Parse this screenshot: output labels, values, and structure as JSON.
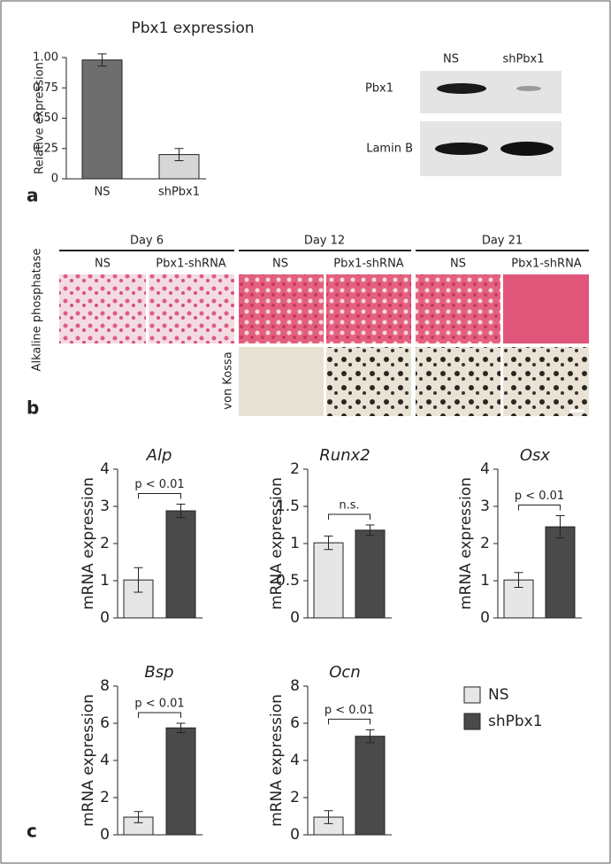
{
  "panels": {
    "a": "a",
    "b": "b",
    "c": "c"
  },
  "blot": {
    "columns": [
      "NS",
      "shPbx1"
    ],
    "rows": [
      "Pbx1",
      "Lamin B"
    ]
  },
  "stain": {
    "days": [
      {
        "day": "Day 6",
        "columns": [
          "NS",
          "Pbx1-shRNA"
        ]
      },
      {
        "day": "Day 12",
        "columns": [
          "NS",
          "Pbx1-shRNA"
        ]
      },
      {
        "day": "Day 21",
        "columns": [
          "NS",
          "Pbx1-shRNA"
        ]
      }
    ],
    "rows": [
      "Alkaline phosphatase",
      "von Kossa"
    ]
  },
  "legend": {
    "entries": [
      {
        "name": "NS",
        "color": "#e6e6e6"
      },
      {
        "name": "shPbx1",
        "color": "#4a4a4a"
      }
    ]
  },
  "chart_data": [
    {
      "type": "bar",
      "title": "Pbx1 expression",
      "ylabel": "Relative expression",
      "categories": [
        "NS",
        "shPbx1"
      ],
      "values": [
        0.98,
        0.2
      ],
      "errors": [
        0.05,
        0.05
      ],
      "colors": [
        "#6e6e6e",
        "#d6d6d6"
      ],
      "ylim": [
        0,
        1
      ],
      "yticks": [
        0,
        0.25,
        {
          "value": 0.5,
          "label": "0.50"
        },
        0.75,
        {
          "value": 1,
          "label": "1.00"
        }
      ]
    },
    {
      "type": "bar",
      "title": "Alp",
      "ylabel": "mRNA expression",
      "categories": [
        null,
        null
      ],
      "values": [
        1.02,
        2.88
      ],
      "errors": [
        0.33,
        0.18
      ],
      "colors": [
        "#e6e6e6",
        "#4a4a4a"
      ],
      "ylim": [
        0,
        4
      ],
      "yticks": [
        0,
        1,
        2,
        3,
        4
      ],
      "annotation": "p < 0.01"
    },
    {
      "type": "bar",
      "title": "Runx2",
      "ylabel": "mRNA expression",
      "categories": [
        null,
        null
      ],
      "values": [
        1.01,
        1.18
      ],
      "errors": [
        0.09,
        0.07
      ],
      "colors": [
        "#e6e6e6",
        "#4a4a4a"
      ],
      "ylim": [
        0,
        2
      ],
      "yticks": [
        0,
        0.5,
        1,
        1.5,
        2
      ],
      "annotation": "n.s."
    },
    {
      "type": "bar",
      "title": "Osx",
      "ylabel": "mRNA expression",
      "categories": [
        null,
        null
      ],
      "values": [
        1.02,
        2.45
      ],
      "errors": [
        0.2,
        0.3
      ],
      "colors": [
        "#e6e6e6",
        "#4a4a4a"
      ],
      "ylim": [
        0,
        4
      ],
      "yticks": [
        0,
        1,
        2,
        3,
        4
      ],
      "annotation": "p < 0.01"
    },
    {
      "type": "bar",
      "title": "Bsp",
      "ylabel": "mRNA expression",
      "categories": [
        null,
        null
      ],
      "values": [
        0.95,
        5.75
      ],
      "errors": [
        0.3,
        0.25
      ],
      "colors": [
        "#e6e6e6",
        "#4a4a4a"
      ],
      "ylim": [
        0,
        8
      ],
      "yticks": [
        0,
        2,
        4,
        6,
        8
      ],
      "annotation": "p < 0.01"
    },
    {
      "type": "bar",
      "title": "Ocn",
      "ylabel": "mRNA expression",
      "categories": [
        null,
        null
      ],
      "values": [
        0.95,
        5.3
      ],
      "errors": [
        0.35,
        0.35
      ],
      "colors": [
        "#e6e6e6",
        "#4a4a4a"
      ],
      "ylim": [
        0,
        8
      ],
      "yticks": [
        0,
        2,
        4,
        6,
        8
      ],
      "annotation": "p < 0.01"
    }
  ]
}
